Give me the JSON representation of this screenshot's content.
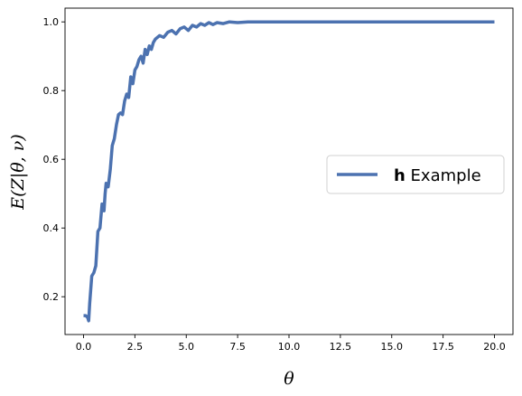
{
  "chart_data": {
    "type": "line",
    "title": "",
    "xlabel": "θ",
    "ylabel": "E(Z|θ, ν)",
    "xlim": [
      -0.9,
      20.9
    ],
    "ylim": [
      0.09,
      1.04
    ],
    "xticks": [
      0.0,
      2.5,
      5.0,
      7.5,
      10.0,
      12.5,
      15.0,
      17.5,
      20.0
    ],
    "xtick_labels": [
      "0.0",
      "2.5",
      "5.0",
      "7.5",
      "10.0",
      "12.5",
      "15.0",
      "17.5",
      "20.0"
    ],
    "yticks": [
      0.2,
      0.4,
      0.6,
      0.8,
      1.0
    ],
    "ytick_labels": [
      "0.2",
      "0.4",
      "0.6",
      "0.8",
      "1.0"
    ],
    "grid": false,
    "legend": {
      "position": "center-right",
      "bold_part": "h",
      "rest": " Example"
    },
    "series": [
      {
        "name": "h Example",
        "color": "#4c72b0",
        "x": [
          0.0,
          0.1,
          0.2,
          0.25,
          0.3,
          0.4,
          0.5,
          0.6,
          0.7,
          0.8,
          0.9,
          1.0,
          1.05,
          1.1,
          1.2,
          1.3,
          1.4,
          1.5,
          1.6,
          1.7,
          1.8,
          1.9,
          2.0,
          2.1,
          2.2,
          2.3,
          2.4,
          2.5,
          2.6,
          2.7,
          2.8,
          2.9,
          3.0,
          3.1,
          3.2,
          3.3,
          3.4,
          3.5,
          3.7,
          3.9,
          4.1,
          4.3,
          4.5,
          4.7,
          4.9,
          5.1,
          5.3,
          5.5,
          5.7,
          5.9,
          6.1,
          6.3,
          6.5,
          6.8,
          7.1,
          7.5,
          8.0,
          8.5,
          9.0,
          9.5,
          10.0,
          11.0,
          12.0,
          13.0,
          14.0,
          15.0,
          16.0,
          17.0,
          18.0,
          19.0,
          20.0
        ],
        "y": [
          0.145,
          0.145,
          0.14,
          0.13,
          0.18,
          0.26,
          0.27,
          0.29,
          0.39,
          0.4,
          0.47,
          0.45,
          0.5,
          0.53,
          0.52,
          0.57,
          0.64,
          0.66,
          0.7,
          0.73,
          0.735,
          0.73,
          0.77,
          0.79,
          0.78,
          0.84,
          0.82,
          0.86,
          0.87,
          0.89,
          0.9,
          0.88,
          0.92,
          0.905,
          0.93,
          0.92,
          0.94,
          0.95,
          0.96,
          0.955,
          0.97,
          0.975,
          0.965,
          0.98,
          0.985,
          0.975,
          0.99,
          0.985,
          0.995,
          0.99,
          0.998,
          0.992,
          0.998,
          0.995,
          1.0,
          0.998,
          1.0,
          1.0,
          1.0,
          1.0,
          1.0,
          1.0,
          1.0,
          1.0,
          1.0,
          1.0,
          1.0,
          1.0,
          1.0,
          1.0,
          1.0
        ]
      }
    ]
  }
}
